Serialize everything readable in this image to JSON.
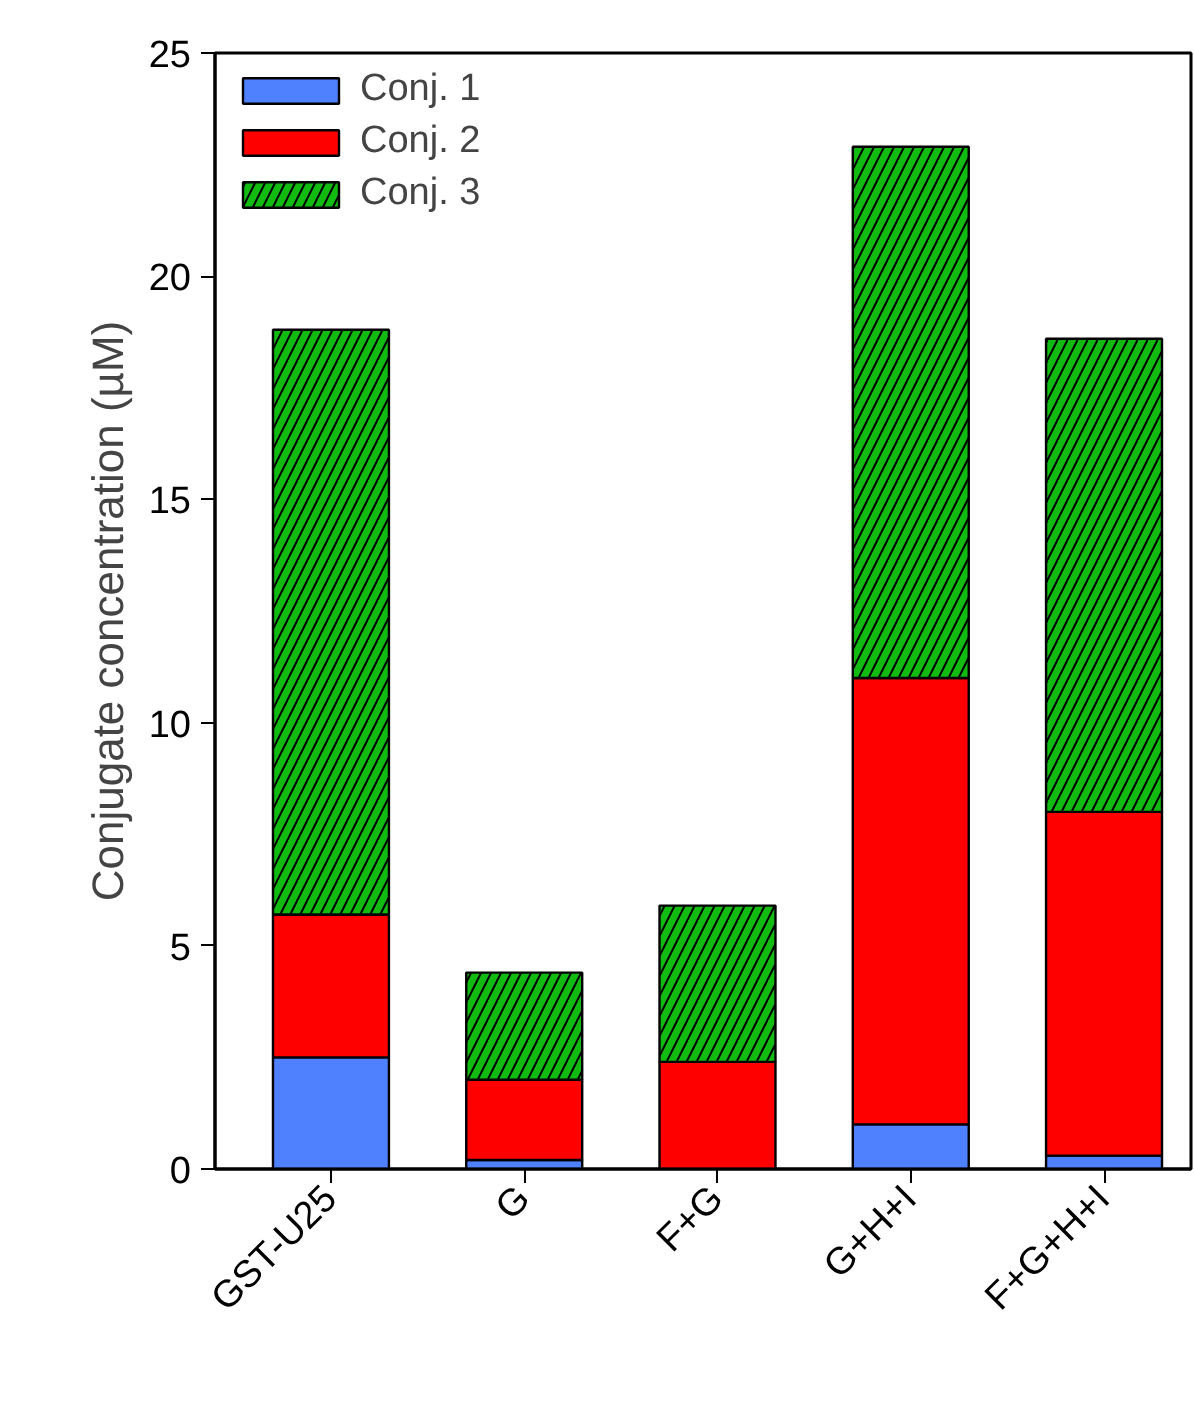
{
  "chart_data": {
    "type": "bar",
    "stacked": true,
    "ylabel": "Conjugate concentration (µM)",
    "categories": [
      "GST-U25",
      "G",
      "F+G",
      "G+H+I",
      "F+G+H+I"
    ],
    "series": [
      {
        "name": "Conj. 1",
        "color": "#4f81ff",
        "values": [
          2.5,
          0.2,
          null,
          1.0,
          0.3
        ]
      },
      {
        "name": "Conj. 2",
        "color": "#ff0000",
        "values": [
          3.2,
          1.8,
          2.4,
          10.0,
          7.7
        ]
      },
      {
        "name": "Conj. 3",
        "color": "#11bb11",
        "values": [
          13.1,
          2.4,
          3.5,
          11.9,
          10.6
        ]
      }
    ],
    "ylim": [
      0,
      25
    ],
    "yticks": [
      0,
      5,
      10,
      15,
      20,
      25
    ],
    "grid": false,
    "legend": "top left"
  }
}
